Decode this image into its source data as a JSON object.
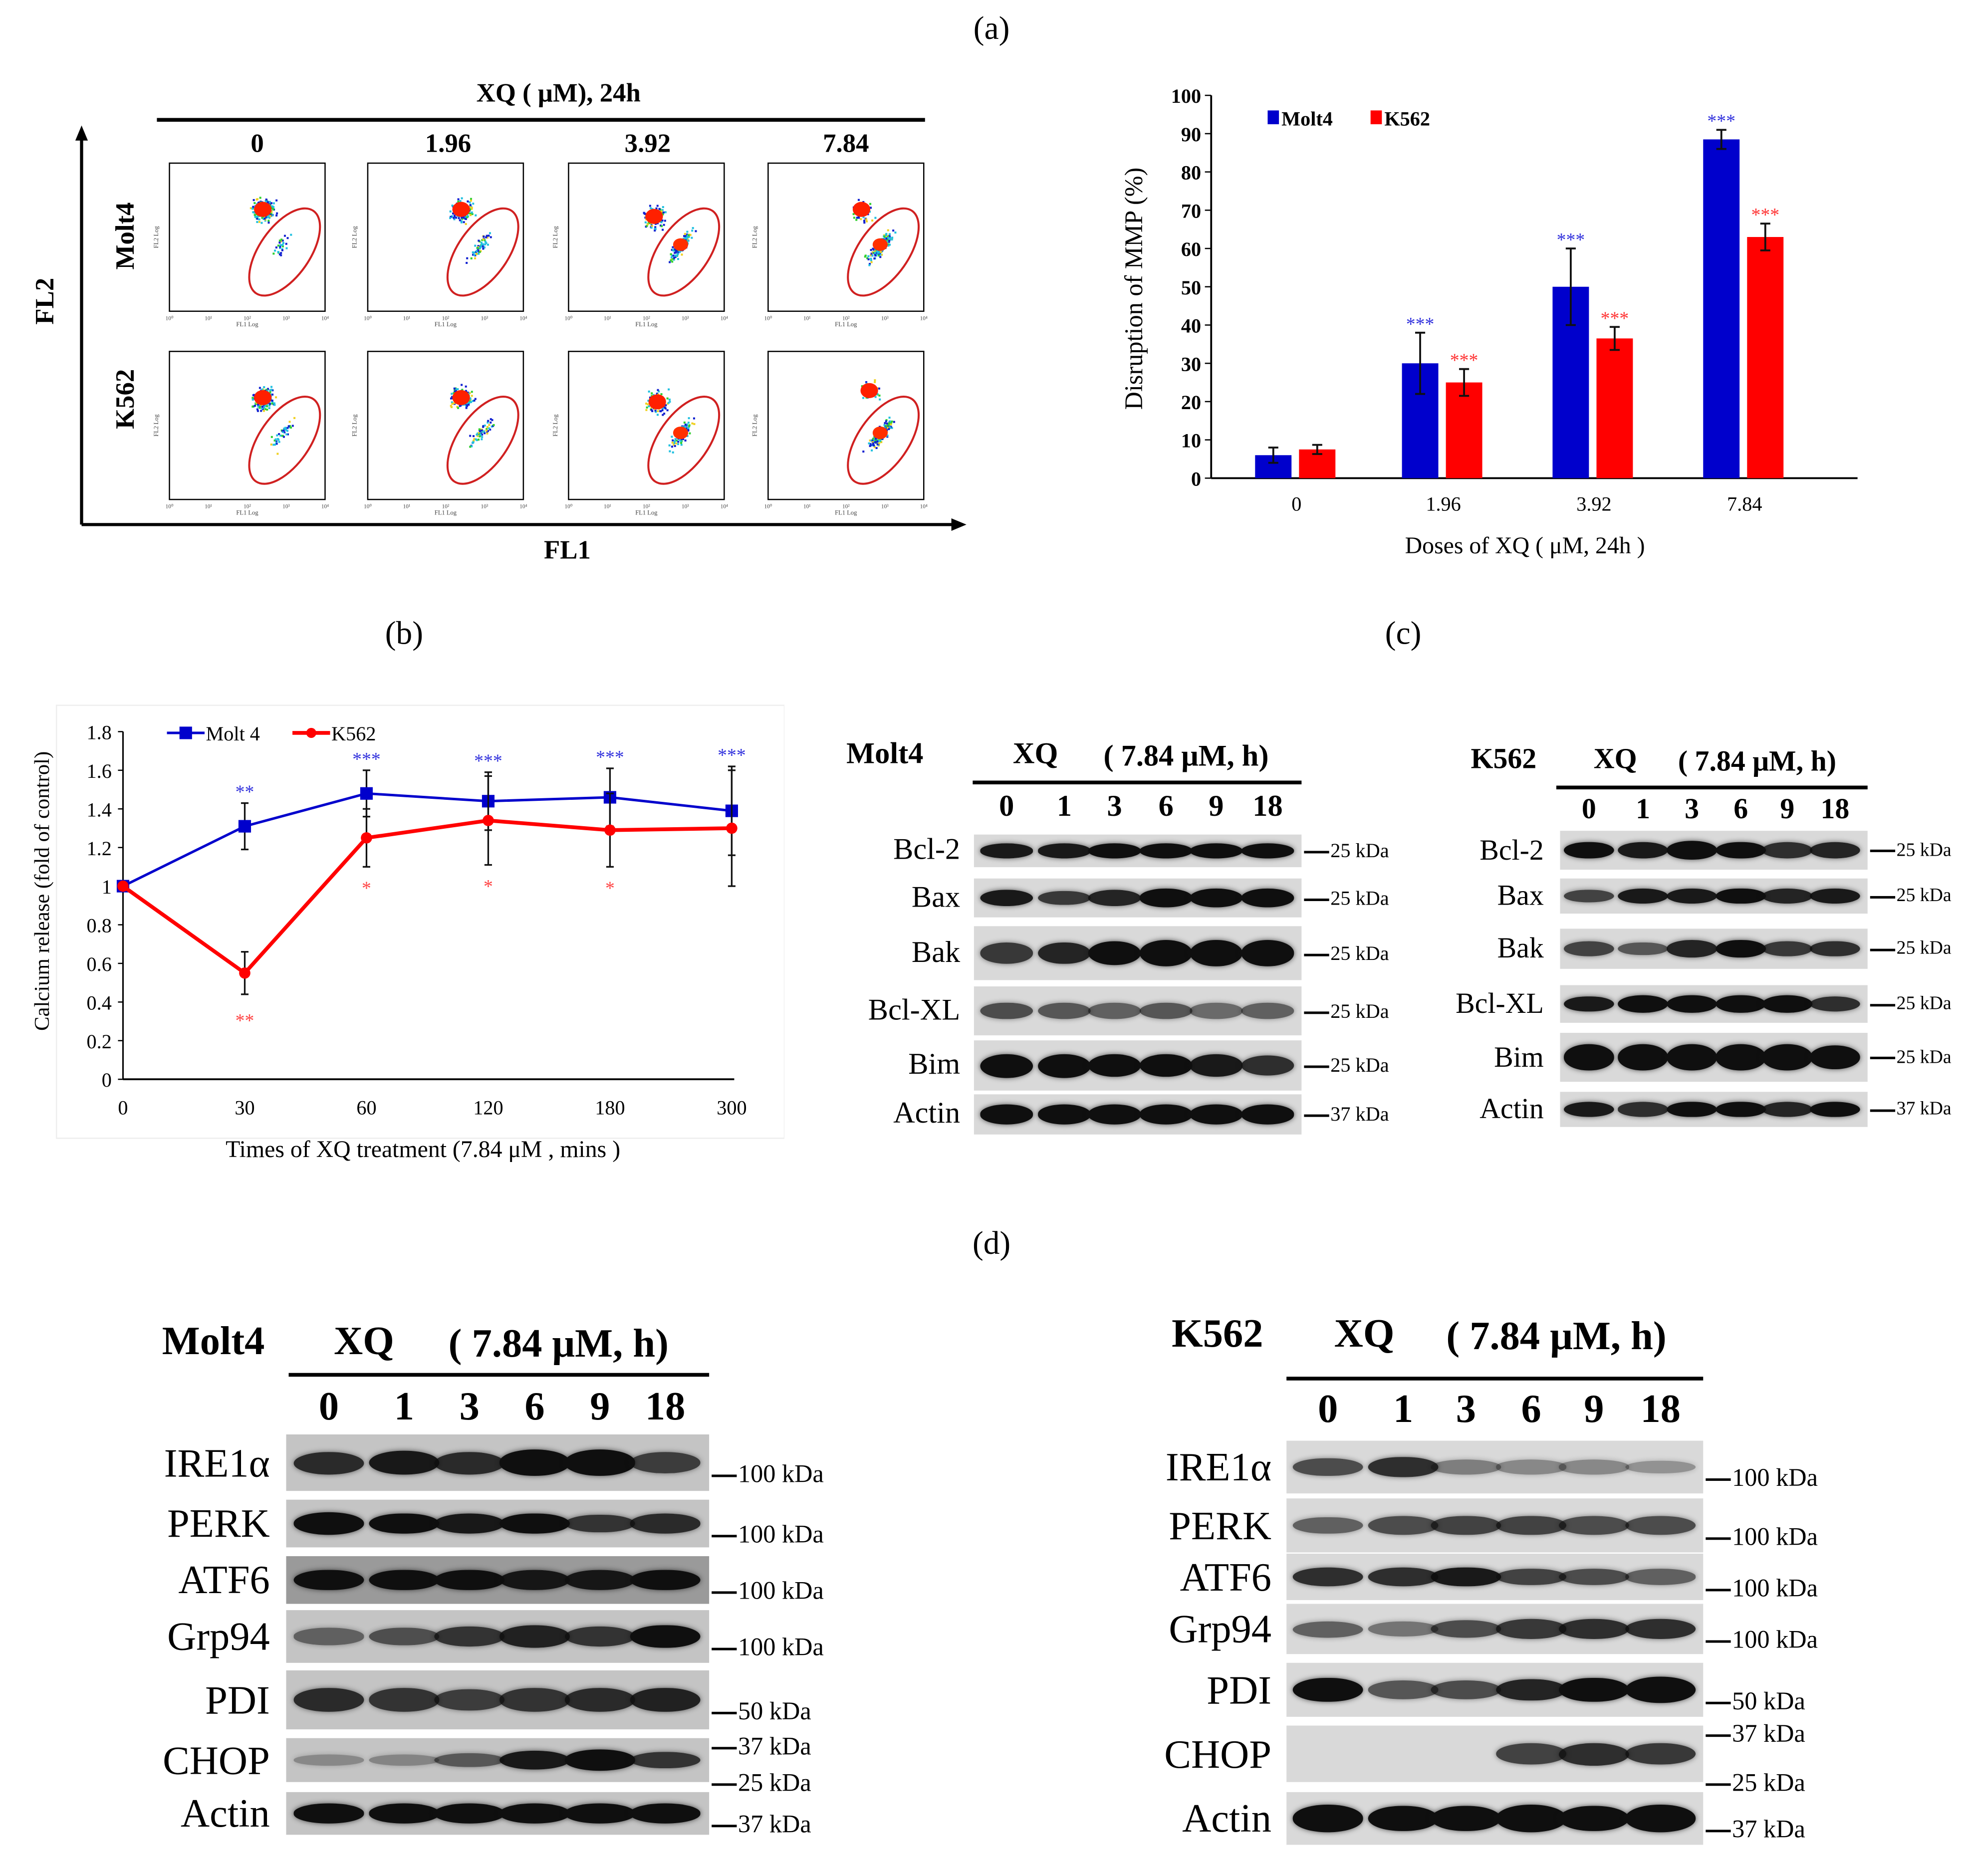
{
  "panel_labels": {
    "a": "(a)",
    "b": "(b)",
    "c": "(c)",
    "d": "(d)"
  },
  "flow": {
    "title": "XQ ( μM), 24h",
    "doses": [
      "0",
      "1.96",
      "3.92",
      "7.84"
    ],
    "rows": [
      "Molt4",
      "K562"
    ],
    "y_axis": "FL2",
    "x_axis": "FL1",
    "plot_x_label": "FL1 Log",
    "plot_y_label": "FL2 Log",
    "tick_labels": [
      "10⁰",
      "10¹",
      "10²",
      "10³",
      "10⁴"
    ]
  },
  "chart_data": [
    {
      "type": "bar",
      "title": "",
      "xlabel": "Doses of  XQ ( μM, 24h )",
      "ylabel": "Disruption of MMP (%)",
      "categories": [
        "0",
        "1.96",
        "3.92",
        "7.84"
      ],
      "ylim": [
        0,
        100
      ],
      "yticks": [
        "0",
        "10",
        "20",
        "30",
        "40",
        "50",
        "60",
        "70",
        "80",
        "90",
        "100"
      ],
      "legend": "top-left",
      "series": [
        {
          "name": "Molt4",
          "color": "#0000cc",
          "values": [
            6,
            30,
            50,
            88.5
          ],
          "errors": [
            2,
            8,
            10,
            2.5
          ],
          "significance": [
            "",
            "***",
            "***",
            "***"
          ]
        },
        {
          "name": "K562",
          "color": "#ff0000",
          "values": [
            7.5,
            25,
            36.5,
            63
          ],
          "errors": [
            1.2,
            3.5,
            3,
            3.5
          ],
          "significance": [
            "",
            "***",
            "***",
            "***"
          ]
        }
      ]
    },
    {
      "type": "line",
      "title": "",
      "xlabel": "Times of  XQ treatment  (7.84 μM , mins )",
      "ylabel": "Calcium release  (fold of control)",
      "categories": [
        "0",
        "30",
        "60",
        "120",
        "180",
        "300"
      ],
      "ylim": [
        0,
        1.8
      ],
      "yticks": [
        "0",
        "0.2",
        "0.4",
        "0.6",
        "0.8",
        "1",
        "1.2",
        "1.4",
        "1.6",
        "1.8"
      ],
      "legend": "top-left",
      "series": [
        {
          "name": "Molt 4",
          "color": "#0000cc",
          "marker": "square",
          "values": [
            1,
            1.31,
            1.48,
            1.44,
            1.46,
            1.39
          ],
          "errors": [
            0,
            0.12,
            0.12,
            0.15,
            0.15,
            0.23
          ],
          "significance": [
            "",
            "**",
            "***",
            "***",
            "***",
            "***"
          ]
        },
        {
          "name": "K562",
          "color": "#ff0000",
          "marker": "circle",
          "values": [
            1,
            0.55,
            1.25,
            1.34,
            1.29,
            1.3
          ],
          "errors": [
            0,
            0.11,
            0.15,
            0.23,
            0.19,
            0.3
          ],
          "significance": [
            "",
            "**",
            "*",
            "*",
            "*",
            ""
          ]
        }
      ]
    }
  ],
  "blots": [
    {
      "cell": "Molt4",
      "xq": "XQ",
      "conc": "( 7.84 μM, h)",
      "lanes": [
        "0",
        "1",
        "3",
        "6",
        "9",
        "18"
      ],
      "rows": [
        {
          "label": "Bcl-2",
          "kda": [
            "25 kDa"
          ],
          "intensity": [
            0.7,
            0.7,
            0.75,
            0.75,
            0.75,
            0.75
          ]
        },
        {
          "label": "Bax",
          "kda": [
            "25 kDa"
          ],
          "intensity": [
            0.7,
            0.55,
            0.65,
            0.8,
            0.85,
            0.85
          ]
        },
        {
          "label": "Bak",
          "kda": [
            "25 kDa"
          ],
          "intensity": [
            0.55,
            0.65,
            0.75,
            0.9,
            0.95,
            0.85
          ]
        },
        {
          "label": "Bcl-XL",
          "kda": [
            "25 kDa"
          ],
          "intensity": [
            0.45,
            0.4,
            0.35,
            0.4,
            0.3,
            0.35
          ]
        },
        {
          "label": "Bim",
          "kda": [
            "25 kDa"
          ],
          "intensity": [
            0.85,
            0.85,
            0.8,
            0.8,
            0.7,
            0.6
          ]
        },
        {
          "label": "Actin",
          "kda": [
            "37 kDa"
          ],
          "intensity": [
            0.85,
            0.85,
            0.85,
            0.85,
            0.85,
            0.85
          ]
        }
      ]
    },
    {
      "cell": "K562",
      "xq": "XQ",
      "conc": "( 7.84 μM, h)",
      "lanes": [
        "0",
        "1",
        "3",
        "6",
        "9",
        "18"
      ],
      "rows": [
        {
          "label": "Bcl-2",
          "kda": [
            "25 kDa"
          ],
          "intensity": [
            0.75,
            0.7,
            0.8,
            0.75,
            0.6,
            0.65
          ]
        },
        {
          "label": "Bax",
          "kda": [
            "25 kDa"
          ],
          "intensity": [
            0.5,
            0.7,
            0.7,
            0.8,
            0.65,
            0.7
          ]
        },
        {
          "label": "Bak",
          "kda": [
            "25 kDa"
          ],
          "intensity": [
            0.5,
            0.4,
            0.65,
            0.75,
            0.55,
            0.6
          ]
        },
        {
          "label": "Bcl-XL",
          "kda": [
            "25 kDa"
          ],
          "intensity": [
            0.7,
            0.8,
            0.85,
            0.85,
            0.8,
            0.6
          ]
        },
        {
          "label": "Bim",
          "kda": [
            "25 kDa"
          ],
          "intensity": [
            1,
            1,
            1,
            1,
            1,
            0.85
          ]
        },
        {
          "label": "Actin",
          "kda": [
            "37 kDa"
          ],
          "intensity": [
            0.7,
            0.6,
            0.8,
            0.8,
            0.65,
            0.75
          ]
        }
      ]
    },
    {
      "cell": "Molt4",
      "xq": "XQ",
      "conc": "( 7.84 μM, h)",
      "lanes": [
        "0",
        "1",
        "3",
        "6",
        "9",
        "18"
      ],
      "rows": [
        {
          "label": "IRE1α",
          "kda": [
            "100 kDa"
          ],
          "intensity": [
            0.6,
            0.7,
            0.6,
            0.75,
            0.75,
            0.5
          ]
        },
        {
          "label": "PERK",
          "kda": [
            "100 kDa"
          ],
          "intensity": [
            0.8,
            0.75,
            0.7,
            0.75,
            0.55,
            0.6
          ]
        },
        {
          "label": "ATF6",
          "kda": [
            "100 kDa"
          ],
          "intensity": [
            0.75,
            0.75,
            0.75,
            0.7,
            0.7,
            0.75
          ]
        },
        {
          "label": "Grp94",
          "kda": [
            "100 kDa"
          ],
          "intensity": [
            0.3,
            0.4,
            0.55,
            0.65,
            0.55,
            0.75
          ]
        },
        {
          "label": "PDI",
          "kda": [
            "50 kDa"
          ],
          "intensity": [
            0.6,
            0.55,
            0.5,
            0.55,
            0.6,
            0.65
          ]
        },
        {
          "label": "CHOP",
          "kda": [
            "37 kDa",
            "25 kDa"
          ],
          "intensity": [
            0.08,
            0.1,
            0.35,
            0.7,
            0.8,
            0.55
          ]
        },
        {
          "label": "Actin",
          "kda": [
            "37 kDa"
          ],
          "intensity": [
            0.75,
            0.75,
            0.75,
            0.75,
            0.75,
            0.75
          ]
        }
      ]
    },
    {
      "cell": "K562",
      "xq": "XQ",
      "conc": "( 7.84 μM, h)",
      "lanes": [
        "0",
        "1",
        "3",
        "6",
        "9",
        "18"
      ],
      "rows": [
        {
          "label": "IRE1α",
          "kda": [
            "100 kDa"
          ],
          "intensity": [
            0.45,
            0.6,
            0.2,
            0.15,
            0.15,
            0.1
          ]
        },
        {
          "label": "PERK",
          "kda": [
            "100 kDa"
          ],
          "intensity": [
            0.35,
            0.45,
            0.5,
            0.5,
            0.45,
            0.45
          ]
        },
        {
          "label": "ATF6",
          "kda": [
            "100 kDa"
          ],
          "intensity": [
            0.6,
            0.6,
            0.7,
            0.5,
            0.45,
            0.35
          ]
        },
        {
          "label": "Grp94",
          "kda": [
            "100 kDa"
          ],
          "intensity": [
            0.35,
            0.25,
            0.45,
            0.55,
            0.6,
            0.6
          ]
        },
        {
          "label": "PDI",
          "kda": [
            "50 kDa"
          ],
          "intensity": [
            0.8,
            0.4,
            0.45,
            0.65,
            0.8,
            0.9
          ]
        },
        {
          "label": "CHOP",
          "kda": [
            "37 kDa",
            "25 kDa"
          ],
          "intensity": [
            0,
            0,
            0,
            0.5,
            0.6,
            0.55
          ]
        },
        {
          "label": "Actin",
          "kda": [
            "37 kDa"
          ],
          "intensity": [
            0.95,
            0.9,
            0.9,
            0.95,
            0.9,
            0.95
          ]
        }
      ]
    }
  ]
}
